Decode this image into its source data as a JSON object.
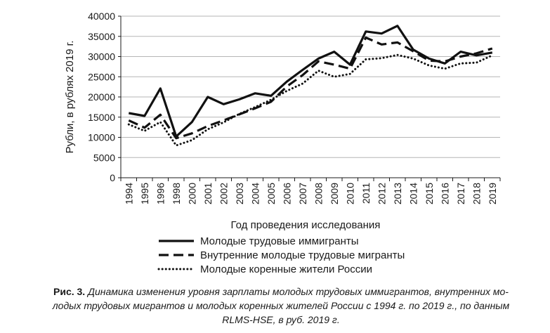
{
  "chart_data": {
    "type": "line",
    "xlabel": "Год проведения исследования",
    "ylabel": "Рубли, в рублях 2019 г.",
    "ylim": [
      0,
      40000
    ],
    "yticks": [
      "0",
      "5000",
      "10000",
      "15000",
      "20000",
      "25000",
      "30000",
      "35000",
      "40000"
    ],
    "categories": [
      "1994",
      "1995",
      "1996",
      "1998",
      "2000",
      "2001",
      "2002",
      "2003",
      "2004",
      "2005",
      "2006",
      "2007",
      "2008",
      "2009",
      "2010",
      "2011",
      "2012",
      "2013",
      "2014",
      "2015",
      "2016",
      "2017",
      "2018",
      "2019"
    ],
    "grid": "horizontal",
    "legend_position": "bottom",
    "series": [
      {
        "name": "Молодые трудовые иммигранты",
        "style": "solid",
        "values": [
          16000,
          15300,
          22100,
          10200,
          13800,
          20000,
          18200,
          19400,
          20900,
          20300,
          23800,
          26700,
          29500,
          31200,
          28000,
          36200,
          35700,
          37600,
          31700,
          29500,
          28300,
          31200,
          30300,
          31000
        ]
      },
      {
        "name": "Внутренние молодые трудовые мигранты",
        "style": "dashed",
        "values": [
          14200,
          12400,
          15600,
          9800,
          11000,
          12800,
          14200,
          15700,
          17200,
          18800,
          22600,
          25400,
          28800,
          28000,
          27000,
          34700,
          33000,
          33500,
          31300,
          29000,
          28800,
          30000,
          30800,
          32000
        ]
      },
      {
        "name": "Молодые коренные жители России",
        "style": "dotted",
        "values": [
          13200,
          11600,
          13800,
          8000,
          9300,
          12000,
          13700,
          15800,
          17500,
          19300,
          21500,
          23300,
          26500,
          25000,
          25700,
          29300,
          29600,
          30400,
          29500,
          27800,
          27000,
          28300,
          28500,
          30300
        ]
      }
    ]
  },
  "caption": {
    "label": "Рис. 3.",
    "text": "Динамика изменения уровня зарплаты молодых трудовых иммигрантов, внутренних мо-",
    "text2": "лодых трудовых мигрантов и молодых коренных жителей России с 1994 г. по 2019 г., по данным",
    "text3": "RLMS-HSE, в руб. 2019 г."
  }
}
